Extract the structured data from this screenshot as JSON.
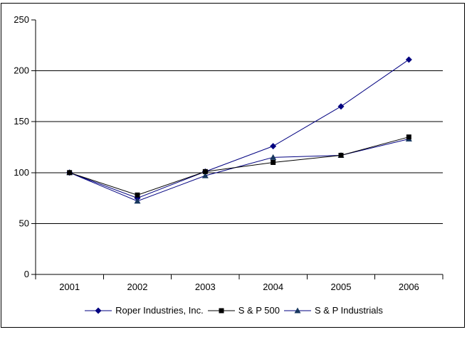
{
  "chart_data": {
    "type": "line",
    "title": "",
    "xlabel": "",
    "ylabel": "",
    "categories": [
      "2001",
      "2002",
      "2003",
      "2004",
      "2005",
      "2006"
    ],
    "series": [
      {
        "name": "Roper Industries, Inc.",
        "marker": "diamond",
        "line_color": "#000080",
        "marker_color": "#000080",
        "values": [
          100,
          75,
          101,
          126,
          165,
          211
        ]
      },
      {
        "name": "S & P 500",
        "marker": "square",
        "line_color": "#000000",
        "marker_color": "#000000",
        "values": [
          100,
          78,
          101,
          110,
          117,
          135
        ]
      },
      {
        "name": "S & P Industrials",
        "marker": "triangle",
        "line_color": "#000080",
        "marker_color": "#17375E",
        "values": [
          100,
          72,
          97,
          115,
          117,
          133
        ]
      }
    ],
    "ylim": [
      0,
      250
    ],
    "yticks": [
      0,
      50,
      100,
      150,
      200,
      250
    ],
    "grid": "horizontal gridlines at 50,100,150,200",
    "legend_position": "bottom",
    "axis_color": "#000000",
    "gridline_color": "#000000",
    "background_color": "#FFFFFF"
  }
}
